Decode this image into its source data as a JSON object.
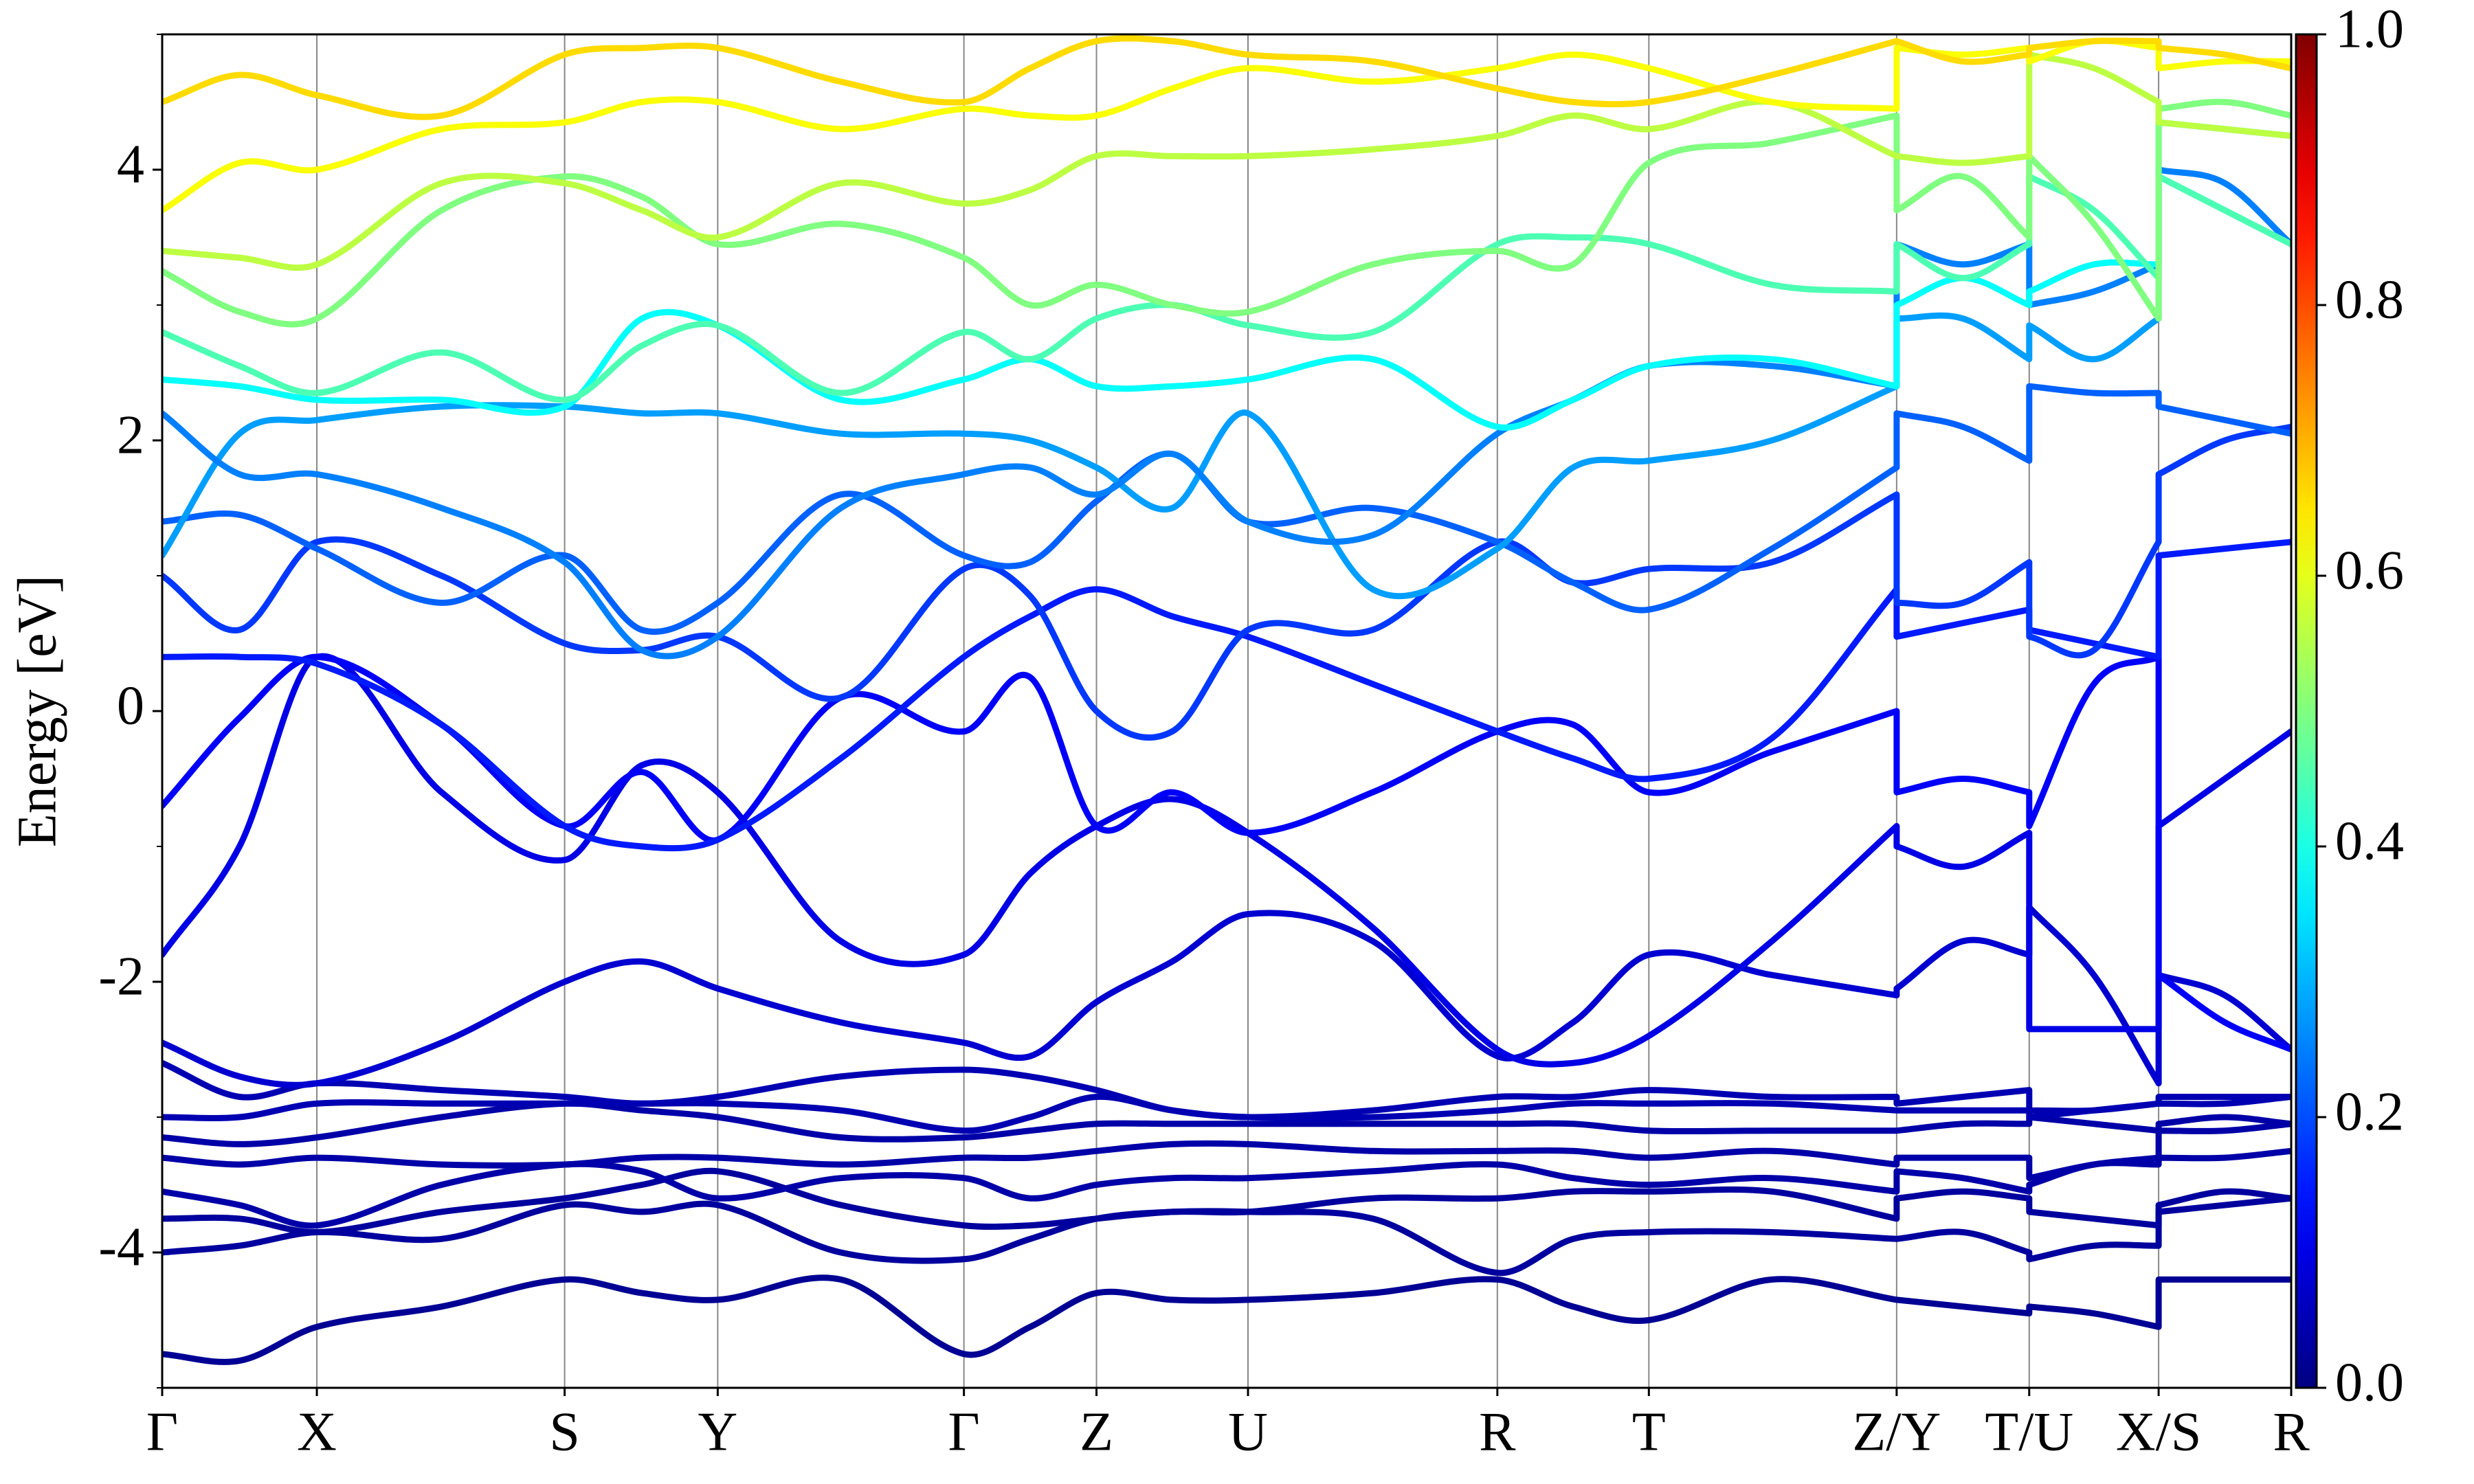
{
  "chart_data": {
    "type": "band_structure",
    "ylabel": "Energy [eV]",
    "x": [
      0,
      0.49,
      0.98,
      1.77,
      2.55,
      3.04,
      3.52,
      4.3,
      5.08,
      5.5,
      5.92,
      6.4,
      6.88,
      7.67,
      8.46,
      8.94,
      9.42,
      10.2,
      10.99,
      10.99,
      11.41,
      11.83,
      11.83,
      12.24,
      12.65,
      12.65,
      13.07,
      13.49
    ],
    "xlim": [
      0,
      13.49
    ],
    "xticks": [
      {
        "value": 0,
        "label": "Γ"
      },
      {
        "value": 0.98,
        "label": "X"
      },
      {
        "value": 2.55,
        "label": "S"
      },
      {
        "value": 3.52,
        "label": "Y"
      },
      {
        "value": 5.08,
        "label": "Γ"
      },
      {
        "value": 5.92,
        "label": "Z"
      },
      {
        "value": 6.88,
        "label": "U"
      },
      {
        "value": 8.46,
        "label": "R"
      },
      {
        "value": 9.42,
        "label": "T"
      },
      {
        "value": 10.99,
        "label": "Z/Y"
      },
      {
        "value": 11.83,
        "label": "T/U"
      },
      {
        "value": 12.65,
        "label": "X/S"
      },
      {
        "value": 13.49,
        "label": "R"
      }
    ],
    "ylim": [
      -5,
      5
    ],
    "yticks": [
      -4,
      -2,
      0,
      2,
      4
    ],
    "yminorticks": [
      -5,
      -3,
      -1,
      1,
      3,
      5
    ],
    "vgrid": true,
    "colormap": "jet",
    "clim": [
      0,
      1
    ],
    "cticks": [
      {
        "value": 0,
        "label": "0.0"
      },
      0.2,
      0.4,
      0.6,
      0.8,
      {
        "value": 1,
        "label": "1.0"
      }
    ],
    "series": [
      {
        "weight": 0.02,
        "values": [
          -4.75,
          -4.8,
          -4.55,
          -4.4,
          -4.2,
          -4.3,
          -4.35,
          -4.2,
          -4.75,
          -4.55,
          -4.3,
          -4.35,
          -4.35,
          -4.3,
          -4.2,
          -4.4,
          -4.5,
          -4.2,
          -4.35,
          -4.35,
          -4.4,
          -4.45,
          -4.4,
          -4.45,
          -4.55,
          -4.2,
          -4.2,
          -4.2
        ]
      },
      {
        "weight": 0.03,
        "values": [
          -4.0,
          -3.95,
          -3.85,
          -3.9,
          -3.65,
          -3.7,
          -3.65,
          -4.0,
          -4.05,
          -3.9,
          -3.75,
          -3.7,
          -3.7,
          -3.75,
          -4.15,
          -3.9,
          -3.85,
          -3.85,
          -3.9,
          -3.9,
          -3.85,
          -4.0,
          -4.05,
          -3.95,
          -3.95,
          -3.7,
          -3.65,
          -3.6
        ]
      },
      {
        "weight": 0.03,
        "values": [
          -3.75,
          -3.75,
          -3.85,
          -3.7,
          -3.6,
          -3.5,
          -3.4,
          -3.65,
          -3.8,
          -3.8,
          -3.75,
          -3.7,
          -3.7,
          -3.6,
          -3.6,
          -3.55,
          -3.55,
          -3.55,
          -3.75,
          -3.6,
          -3.55,
          -3.6,
          -3.7,
          -3.75,
          -3.8,
          -3.65,
          -3.55,
          -3.6
        ]
      },
      {
        "weight": 0.04,
        "values": [
          -3.55,
          -3.65,
          -3.8,
          -3.5,
          -3.35,
          -3.4,
          -3.6,
          -3.45,
          -3.45,
          -3.6,
          -3.5,
          -3.45,
          -3.45,
          -3.4,
          -3.35,
          -3.45,
          -3.5,
          -3.45,
          -3.55,
          -3.4,
          -3.45,
          -3.55,
          -3.5,
          -3.35,
          -3.35,
          -3.3,
          -3.3,
          -3.25
        ]
      },
      {
        "weight": 0.04,
        "values": [
          -3.3,
          -3.35,
          -3.3,
          -3.35,
          -3.35,
          -3.3,
          -3.3,
          -3.35,
          -3.3,
          -3.3,
          -3.25,
          -3.2,
          -3.2,
          -3.25,
          -3.25,
          -3.25,
          -3.3,
          -3.25,
          -3.35,
          -3.3,
          -3.3,
          -3.3,
          -3.45,
          -3.35,
          -3.3,
          -3.1,
          -3.1,
          -3.05
        ]
      },
      {
        "weight": 0.04,
        "values": [
          -3.15,
          -3.2,
          -3.15,
          -3.0,
          -2.9,
          -2.95,
          -3.0,
          -3.15,
          -3.15,
          -3.1,
          -3.05,
          -3.05,
          -3.05,
          -3.05,
          -3.05,
          -3.05,
          -3.1,
          -3.1,
          -3.1,
          -3.1,
          -3.05,
          -3.05,
          -3.0,
          -3.05,
          -3.1,
          -3.05,
          -3.0,
          -3.05
        ]
      },
      {
        "weight": 0.05,
        "values": [
          -3.0,
          -3.0,
          -2.9,
          -2.9,
          -2.9,
          -2.9,
          -2.9,
          -2.95,
          -3.1,
          -3.0,
          -2.85,
          -2.95,
          -3.0,
          -2.95,
          -2.85,
          -2.85,
          -2.8,
          -2.85,
          -2.85,
          -2.9,
          -2.85,
          -2.8,
          -2.95,
          -2.95,
          -2.9,
          -2.85,
          -2.85,
          -2.85
        ]
      },
      {
        "weight": 0.05,
        "values": [
          -2.6,
          -2.85,
          -2.75,
          -2.8,
          -2.85,
          -2.9,
          -2.85,
          -2.7,
          -2.65,
          -2.7,
          -2.8,
          -2.95,
          -3.0,
          -3.0,
          -2.95,
          -2.9,
          -2.9,
          -2.9,
          -2.95,
          -2.95,
          -2.95,
          -2.95,
          -3.0,
          -2.95,
          -2.9,
          -2.9,
          -2.9,
          -2.85
        ]
      },
      {
        "weight": 0.08,
        "values": [
          -2.45,
          -2.7,
          -2.75,
          -2.45,
          -2.0,
          -1.85,
          -2.05,
          -2.3,
          -2.45,
          -2.55,
          -2.15,
          -1.85,
          -1.5,
          -1.7,
          -2.55,
          -2.3,
          -1.8,
          -1.95,
          -2.1,
          -2.05,
          -1.7,
          -1.8,
          -1.45,
          -1.95,
          -2.75,
          -1.95,
          -2.1,
          -2.5
        ]
      },
      {
        "weight": 0.1,
        "values": [
          -1.8,
          -1.0,
          0.4,
          -0.6,
          -1.1,
          -0.4,
          -0.6,
          -1.7,
          -1.8,
          -1.2,
          -0.85,
          -0.65,
          -0.9,
          -1.6,
          -2.5,
          -2.6,
          -2.4,
          -1.7,
          -0.85,
          -1.0,
          -1.15,
          -0.9,
          -2.35,
          -2.35,
          -2.35,
          -0.85,
          -0.5,
          -0.15
        ]
      },
      {
        "weight": 0.12,
        "values": [
          -0.7,
          -0.05,
          0.4,
          -0.1,
          -0.85,
          -0.45,
          -0.95,
          0.1,
          -0.15,
          0.25,
          -0.85,
          -0.6,
          -0.9,
          -0.6,
          -0.15,
          -0.1,
          -0.6,
          -0.3,
          0.0,
          -0.6,
          -0.5,
          -0.6,
          -0.85,
          0.2,
          0.4,
          -1.95,
          -2.3,
          -2.5
        ]
      },
      {
        "weight": 0.15,
        "values": [
          0.4,
          0.4,
          0.35,
          -0.1,
          -0.85,
          -1.0,
          -0.95,
          -0.35,
          0.4,
          0.7,
          0.9,
          0.7,
          0.55,
          0.2,
          -0.15,
          -0.35,
          -0.5,
          -0.2,
          0.9,
          0.55,
          0.65,
          0.75,
          0.6,
          0.5,
          0.4,
          1.15,
          1.2,
          1.25
        ]
      },
      {
        "weight": 0.18,
        "values": [
          1.0,
          0.6,
          1.25,
          1.0,
          0.5,
          0.45,
          0.55,
          0.1,
          1.05,
          0.85,
          0.0,
          -0.15,
          0.6,
          0.6,
          1.25,
          0.95,
          1.05,
          1.1,
          1.6,
          0.8,
          0.8,
          1.1,
          0.55,
          0.45,
          1.25,
          1.75,
          2.0,
          2.1
        ]
      },
      {
        "weight": 0.22,
        "values": [
          1.4,
          1.45,
          1.2,
          0.8,
          1.15,
          0.6,
          0.8,
          1.6,
          1.15,
          1.1,
          1.55,
          1.9,
          1.4,
          1.5,
          1.25,
          0.95,
          0.75,
          1.2,
          1.8,
          2.2,
          2.1,
          1.85,
          2.4,
          2.35,
          2.35,
          2.25,
          2.15,
          2.05
        ]
      },
      {
        "weight": 0.28,
        "values": [
          1.15,
          2.05,
          2.15,
          2.25,
          2.25,
          2.2,
          2.2,
          2.05,
          2.05,
          2.0,
          1.8,
          1.5,
          2.2,
          0.9,
          1.2,
          1.8,
          1.85,
          2.0,
          2.4,
          2.9,
          2.9,
          2.6,
          2.85,
          2.6,
          2.9,
          3.95,
          3.7,
          3.45
        ]
      },
      {
        "weight": 0.25,
        "values": [
          2.2,
          1.75,
          1.75,
          1.5,
          1.1,
          0.45,
          0.55,
          1.5,
          1.75,
          1.8,
          1.6,
          1.9,
          1.4,
          1.3,
          2.05,
          2.3,
          2.55,
          2.55,
          2.4,
          3.45,
          3.3,
          3.45,
          3.0,
          3.1,
          3.3,
          4.0,
          3.9,
          3.45
        ]
      },
      {
        "weight": 0.38,
        "values": [
          2.45,
          2.4,
          2.3,
          2.3,
          2.25,
          2.9,
          2.85,
          2.3,
          2.45,
          2.6,
          2.4,
          2.4,
          2.45,
          2.6,
          2.1,
          2.3,
          2.55,
          2.6,
          2.4,
          3.0,
          3.2,
          3.0,
          3.1,
          3.3,
          3.3,
          4.35,
          4.3,
          4.25
        ]
      },
      {
        "weight": 0.45,
        "values": [
          2.8,
          2.55,
          2.35,
          2.65,
          2.3,
          2.7,
          2.85,
          2.35,
          2.8,
          2.6,
          2.9,
          3.0,
          2.85,
          2.8,
          3.45,
          3.5,
          3.45,
          3.15,
          3.1,
          3.45,
          3.2,
          3.45,
          3.95,
          3.7,
          3.2,
          3.95,
          3.7,
          3.45
        ]
      },
      {
        "weight": 0.5,
        "values": [
          3.25,
          2.95,
          2.9,
          3.7,
          3.95,
          3.8,
          3.45,
          3.6,
          3.35,
          3.0,
          3.15,
          3.0,
          2.95,
          3.3,
          3.4,
          3.3,
          4.05,
          4.2,
          4.4,
          3.7,
          3.95,
          3.5,
          4.1,
          3.6,
          2.9,
          4.45,
          4.5,
          4.4
        ]
      },
      {
        "weight": 0.56,
        "values": [
          3.4,
          3.35,
          3.3,
          3.9,
          3.9,
          3.7,
          3.5,
          3.9,
          3.75,
          3.85,
          4.1,
          4.1,
          4.1,
          4.15,
          4.25,
          4.4,
          4.3,
          4.5,
          4.1,
          4.1,
          4.05,
          4.1,
          4.85,
          4.75,
          4.5,
          4.35,
          4.3,
          4.25
        ]
      },
      {
        "weight": 0.62,
        "values": [
          3.7,
          4.05,
          4.0,
          4.3,
          4.35,
          4.5,
          4.5,
          4.3,
          4.45,
          4.4,
          4.4,
          4.6,
          4.75,
          4.65,
          4.75,
          4.85,
          4.75,
          4.5,
          4.45,
          4.9,
          4.85,
          4.9,
          4.8,
          4.95,
          4.9,
          4.75,
          4.8,
          4.8
        ]
      },
      {
        "weight": 0.66,
        "values": [
          4.5,
          4.7,
          4.55,
          4.4,
          4.85,
          4.9,
          4.9,
          4.65,
          4.5,
          4.75,
          4.95,
          4.95,
          4.85,
          4.8,
          4.6,
          4.5,
          4.5,
          4.7,
          4.95,
          4.95,
          4.8,
          4.85,
          4.9,
          4.95,
          4.95,
          4.9,
          4.85,
          4.75
        ]
      }
    ]
  }
}
